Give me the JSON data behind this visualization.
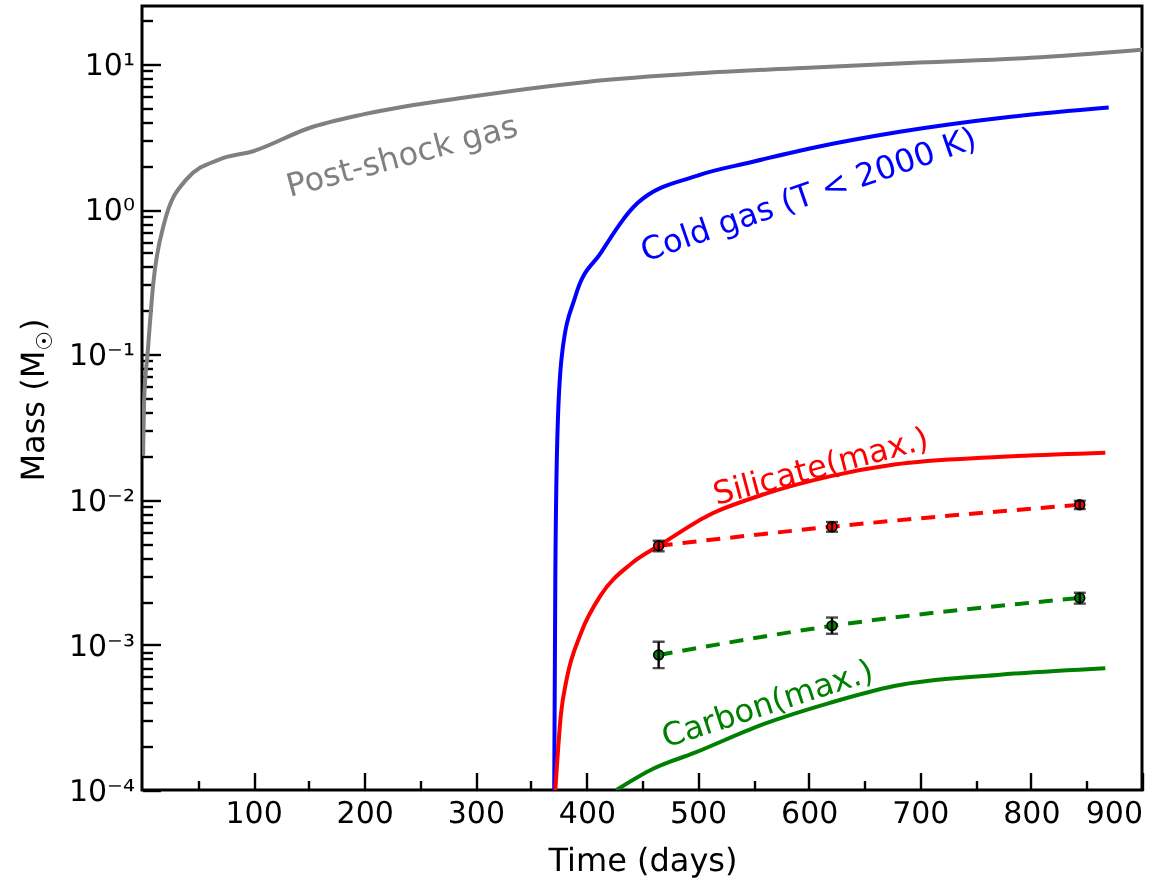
{
  "chart_data": {
    "type": "line",
    "xlabel": "Time (days)",
    "ylabel": "Mass (M$_{☉}$)",
    "log": "y",
    "grid": false,
    "xlim": [
      0,
      900
    ],
    "xticks": [
      {
        "value": 50,
        "label": null
      },
      100,
      {
        "value": 150,
        "label": null
      },
      200,
      {
        "value": 250,
        "label": null
      },
      300,
      {
        "value": 350,
        "label": null
      },
      400,
      {
        "value": 450,
        "label": null
      },
      500,
      {
        "value": 550,
        "label": null
      },
      600,
      {
        "value": 650,
        "label": null
      },
      700,
      {
        "value": 750,
        "label": null
      },
      800,
      {
        "value": 850,
        "label": null
      },
      900
    ],
    "ylim": [
      0.0001,
      25
    ],
    "yticks": [
      {
        "value": 0.0001,
        "label": "10⁻⁴"
      },
      {
        "value": 0.0002,
        "label": null
      },
      {
        "value": 0.0003,
        "label": null
      },
      {
        "value": 0.0004,
        "label": null
      },
      {
        "value": 0.0005,
        "label": null
      },
      {
        "value": 0.0006,
        "label": null
      },
      {
        "value": 0.0007,
        "label": null
      },
      {
        "value": 0.0008,
        "label": null
      },
      {
        "value": 0.0009,
        "label": null
      },
      {
        "value": 0.001,
        "label": "10⁻³"
      },
      {
        "value": 0.002,
        "label": null
      },
      {
        "value": 0.003,
        "label": null
      },
      {
        "value": 0.004,
        "label": null
      },
      {
        "value": 0.005,
        "label": null
      },
      {
        "value": 0.006,
        "label": null
      },
      {
        "value": 0.007,
        "label": null
      },
      {
        "value": 0.008,
        "label": null
      },
      {
        "value": 0.009,
        "label": null
      },
      {
        "value": 0.01,
        "label": "10⁻²"
      },
      {
        "value": 0.02,
        "label": null
      },
      {
        "value": 0.03,
        "label": null
      },
      {
        "value": 0.04,
        "label": null
      },
      {
        "value": 0.05,
        "label": null
      },
      {
        "value": 0.06,
        "label": null
      },
      {
        "value": 0.07,
        "label": null
      },
      {
        "value": 0.08,
        "label": null
      },
      {
        "value": 0.09,
        "label": null
      },
      {
        "value": 0.1,
        "label": "10⁻¹"
      },
      {
        "value": 0.2,
        "label": null
      },
      {
        "value": 0.3,
        "label": null
      },
      {
        "value": 0.4,
        "label": null
      },
      {
        "value": 0.5,
        "label": null
      },
      {
        "value": 0.6,
        "label": null
      },
      {
        "value": 0.7,
        "label": null
      },
      {
        "value": 0.8,
        "label": null
      },
      {
        "value": 0.9,
        "label": null
      },
      {
        "value": 1,
        "label": "10⁰"
      },
      {
        "value": 2,
        "label": null
      },
      {
        "value": 3,
        "label": null
      },
      {
        "value": 4,
        "label": null
      },
      {
        "value": 5,
        "label": null
      },
      {
        "value": 6,
        "label": null
      },
      {
        "value": 7,
        "label": null
      },
      {
        "value": 8,
        "label": null
      },
      {
        "value": 9,
        "label": null
      },
      {
        "value": 10,
        "label": "10¹"
      },
      {
        "value": 20,
        "label": null
      }
    ],
    "series": [
      {
        "name": "Post-shock gas",
        "color": "#808080",
        "marker": "none",
        "line_style": "solid",
        "x": [
          1,
          2,
          5,
          10,
          20,
          40,
          70,
          100,
          150,
          200,
          300,
          400,
          500,
          600,
          700,
          800,
          900
        ],
        "values": [
          0.02,
          0.05,
          0.1,
          0.3,
          0.8,
          1.6,
          2.2,
          2.5,
          3.6,
          4.5,
          6.0,
          7.5,
          8.6,
          9.4,
          10.2,
          11,
          12.5
        ]
      },
      {
        "name": "Cold gas (T < 2000 K)",
        "color": "#0000ff",
        "marker": "none",
        "line_style": "solid",
        "x": [
          371,
          372,
          374,
          378,
          390,
          413,
          446,
          500,
          548,
          600,
          682,
          780,
          870
        ],
        "values": [
          0.0001,
          0.003,
          0.03,
          0.1,
          0.25,
          0.5,
          1.1,
          1.7,
          2.1,
          2.6,
          3.4,
          4.3,
          5.0
        ]
      },
      {
        "name": "Silicate(max.)",
        "color": "#ff0000",
        "marker": "none",
        "line_style": "solid",
        "x": [
          372,
          377,
          382,
          395,
          413,
          440,
          467,
          510,
          557,
          620,
          677,
          770,
          867
        ],
        "values": [
          0.0001,
          0.00033,
          0.00057,
          0.0012,
          0.0022,
          0.0036,
          0.0049,
          0.0078,
          0.0107,
          0.0145,
          0.0174,
          0.0196,
          0.021
        ]
      },
      {
        "color": "#ff0000",
        "marker": "circle",
        "line_style": "dashed",
        "x": [
          465,
          621,
          844
        ],
        "values": [
          0.0048,
          0.0065,
          0.0092
        ],
        "errors": [
          0.0004,
          0.0005,
          0.0006
        ]
      },
      {
        "color": "#008000",
        "marker": "circle",
        "line_style": "dashed",
        "x": [
          465,
          621,
          844
        ],
        "values": [
          0.00085,
          0.00135,
          0.0021
        ],
        "errors": [
          [
            0.00069,
            0.00105
          ],
          [
            0.00119,
            0.00154
          ],
          0.00018
        ]
      },
      {
        "name": "Carbon(max.)",
        "color": "#008000",
        "marker": "none",
        "line_style": "solid",
        "x": [
          427,
          460,
          497,
          557,
          620,
          677,
          770,
          867
        ],
        "values": [
          0.0001,
          0.00014,
          0.00018,
          0.00028,
          0.0004,
          0.00052,
          0.00062,
          0.00069
        ]
      }
    ]
  }
}
